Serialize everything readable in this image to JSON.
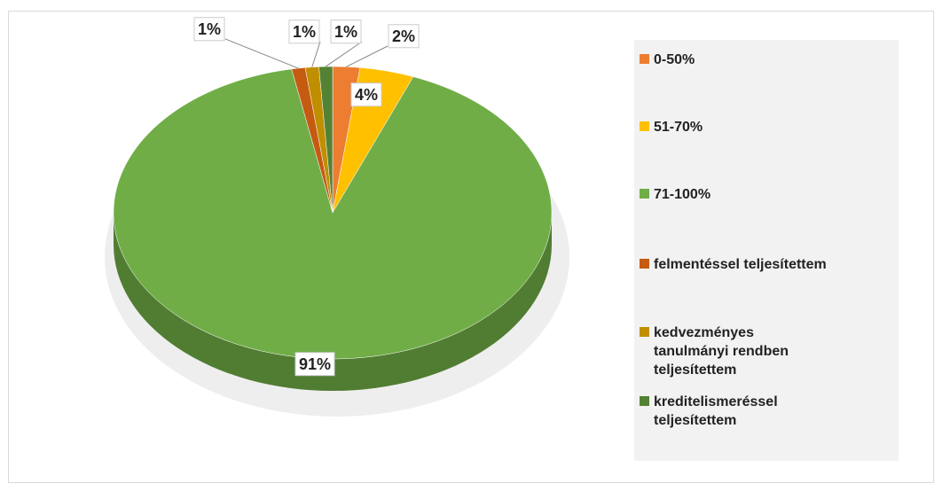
{
  "chart_data": {
    "type": "pie",
    "categories": [
      "0-50%",
      "51-70%",
      "71-100%",
      "felmentéssel teljesítettem",
      "kedvezményes tanulmányi rendben teljesítettem",
      "kreditelismeréssel teljesítettem"
    ],
    "values": [
      2,
      4,
      91,
      1,
      1,
      1
    ],
    "value_labels": [
      "2%",
      "4%",
      "91%",
      "1%",
      "1%",
      "1%"
    ],
    "colors": [
      "#ed7d31",
      "#ffc000",
      "#70ad47",
      "#c55a11",
      "#bf8f00",
      "#548235"
    ],
    "legend": "right"
  }
}
